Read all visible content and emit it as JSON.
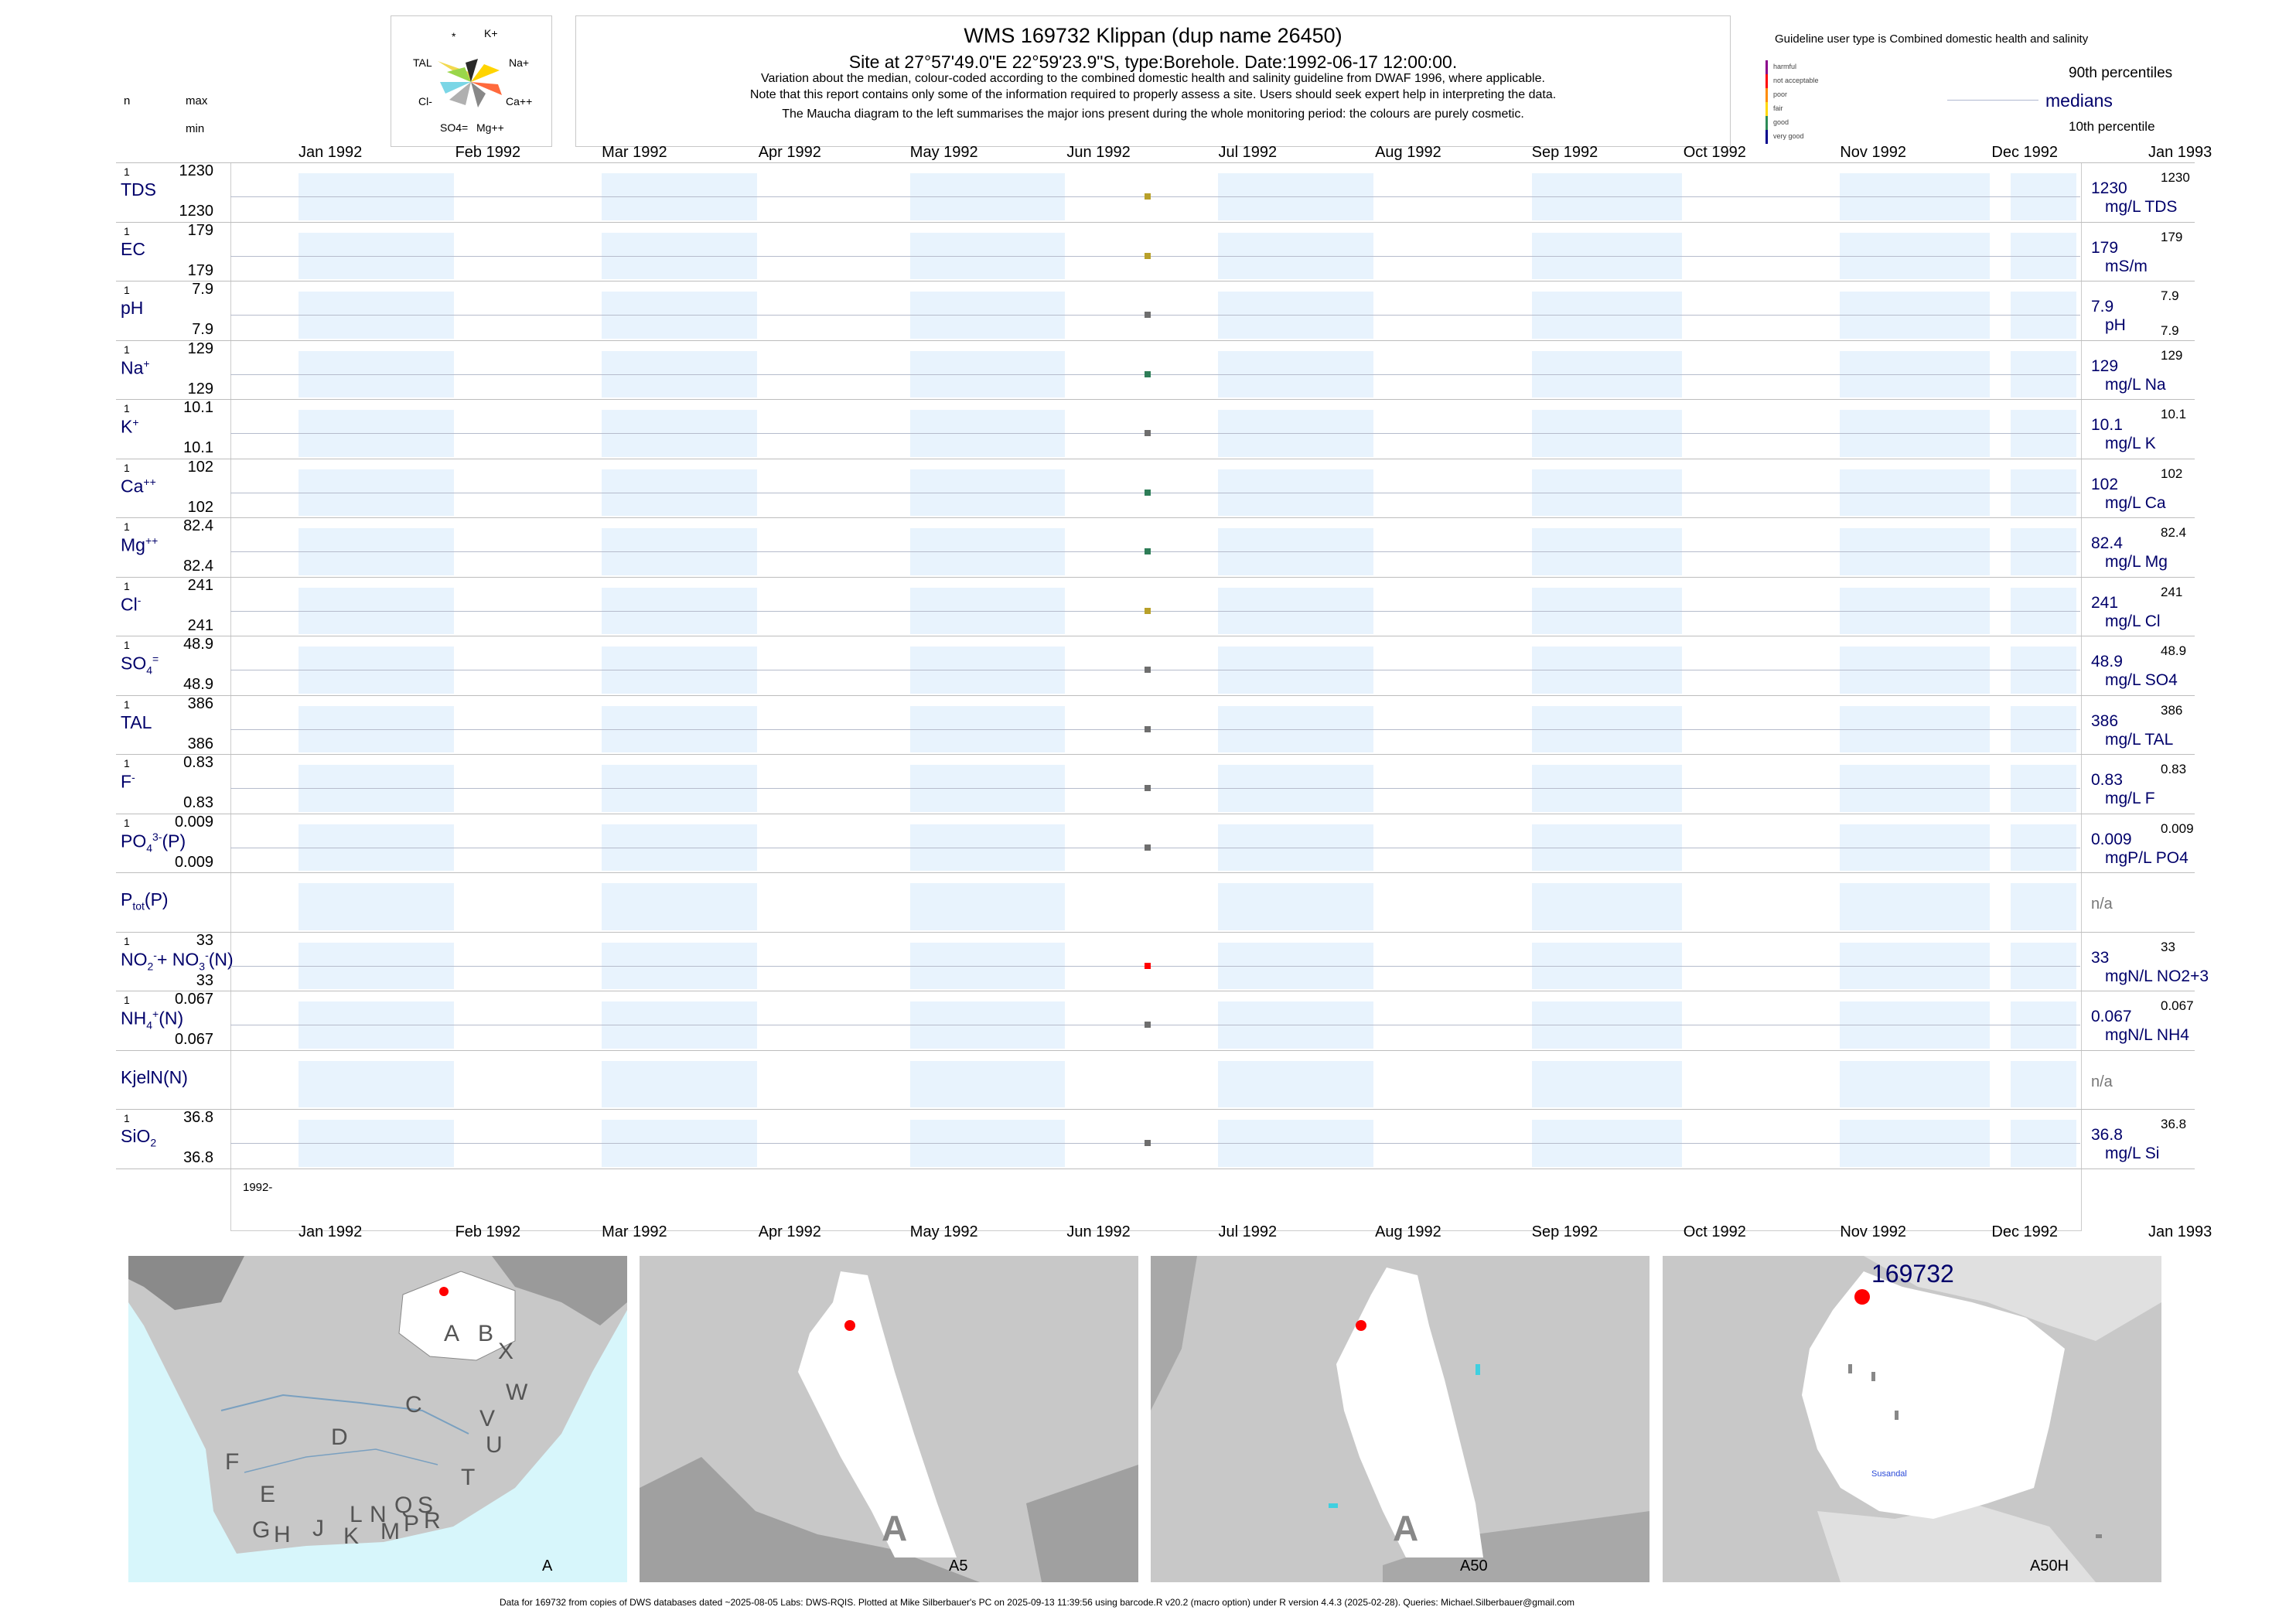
{
  "header": {
    "title": "WMS 169732  Klippan (dup name 26450)",
    "subtitle": "Site at 27°57'49.0\"E 22°59'23.9\"S, type:Borehole. Date:1992-06-17 12:00:00.",
    "note1": "Variation about the median,  colour-coded according to the combined domestic health and salinity guideline from DWAF 1996, where applicable.",
    "note2": "Note that this report contains only some of the information required to properly assess a site. Users should seek expert help in interpreting the data.",
    "note3": "The Maucha diagram to the left summarises the major ions present during the whole monitoring period: the colours are purely cosmetic."
  },
  "column_headers": {
    "n": "n",
    "max": "max",
    "min": "min"
  },
  "maucha": {
    "labels": {
      "star": "*",
      "k": "K+",
      "tal": "TAL",
      "na": "Na+",
      "cl": "Cl-",
      "ca": "Ca++",
      "so4": "SO4=",
      "mg": "Mg++"
    }
  },
  "guideline": {
    "title": "Guideline user type is Combined domestic health and salinity",
    "classes": [
      {
        "label": "harmful",
        "color": "#8b008b"
      },
      {
        "label": "not acceptable",
        "color": "#ff0000"
      },
      {
        "label": "poor",
        "color": "#ff8c00"
      },
      {
        "label": "fair",
        "color": "#ffd700"
      },
      {
        "label": "good",
        "color": "#2e8b57"
      },
      {
        "label": "very good",
        "color": "#00008b"
      }
    ],
    "pct90": "90th percentiles",
    "medians": "medians",
    "pct10": "10th percentile"
  },
  "chart_data": {
    "type": "scatter",
    "x_axis": {
      "ticks": [
        "Jan 1992",
        "Feb 1992",
        "Mar 1992",
        "Apr 1992",
        "May 1992",
        "Jun 1992",
        "Jul 1992",
        "Aug 1992",
        "Sep 1992",
        "Oct 1992",
        "Nov 1992",
        "Dec 1992",
        "Jan 1993"
      ],
      "range": [
        "1992-01-01",
        "1993-01-01"
      ],
      "year_label": "1992-"
    },
    "sample_date": "1992-06-17",
    "series": [
      {
        "name": "TDS",
        "n": "1",
        "max": "1230",
        "min": "1230",
        "median": "1230",
        "unit": "mg/L TDS",
        "p90": "1230",
        "p10": "",
        "value": 1230,
        "color": "#b8a02a"
      },
      {
        "name": "EC",
        "n": "1",
        "max": "179",
        "min": "179",
        "median": "179",
        "unit": "mS/m",
        "p90": "179",
        "p10": "",
        "value": 179,
        "color": "#b8a02a"
      },
      {
        "name": "pH",
        "n": "1",
        "max": "7.9",
        "min": "7.9",
        "median": "7.9",
        "unit": "pH",
        "p90": "7.9",
        "p10": "7.9",
        "value": 7.9,
        "color": "#6e6e6e"
      },
      {
        "name": "Na+",
        "n": "1",
        "max": "129",
        "min": "129",
        "median": "129",
        "unit": "mg/L Na",
        "p90": "129",
        "p10": "",
        "value": 129,
        "color": "#2e7d57"
      },
      {
        "name": "K+",
        "n": "1",
        "max": "10.1",
        "min": "10.1",
        "median": "10.1",
        "unit": "mg/L K",
        "p90": "10.1",
        "p10": "",
        "value": 10.1,
        "color": "#6e6e6e"
      },
      {
        "name": "Ca++",
        "n": "1",
        "max": "102",
        "min": "102",
        "median": "102",
        "unit": "mg/L Ca",
        "p90": "102",
        "p10": "",
        "value": 102,
        "color": "#2e7d57"
      },
      {
        "name": "Mg++",
        "n": "1",
        "max": "82.4",
        "min": "82.4",
        "median": "82.4",
        "unit": "mg/L Mg",
        "p90": "82.4",
        "p10": "",
        "value": 82.4,
        "color": "#2e7d57"
      },
      {
        "name": "Cl-",
        "n": "1",
        "max": "241",
        "min": "241",
        "median": "241",
        "unit": "mg/L Cl",
        "p90": "241",
        "p10": "",
        "value": 241,
        "color": "#b8a02a"
      },
      {
        "name": "SO4=",
        "n": "1",
        "max": "48.9",
        "min": "48.9",
        "median": "48.9",
        "unit": "mg/L SO4",
        "p90": "48.9",
        "p10": "",
        "value": 48.9,
        "color": "#6e6e6e"
      },
      {
        "name": "TAL",
        "n": "1",
        "max": "386",
        "min": "386",
        "median": "386",
        "unit": "mg/L TAL",
        "p90": "386",
        "p10": "",
        "value": 386,
        "color": "#6e6e6e"
      },
      {
        "name": "F-",
        "n": "1",
        "max": "0.83",
        "min": "0.83",
        "median": "0.83",
        "unit": "mg/L F",
        "p90": "0.83",
        "p10": "",
        "value": 0.83,
        "color": "#6e6e6e"
      },
      {
        "name": "PO4(3-)(P)",
        "n": "1",
        "max": "0.009",
        "min": "0.009",
        "median": "0.009",
        "unit": "mgP/L PO4",
        "p90": "0.009",
        "p10": "",
        "value": 0.009,
        "color": "#6e6e6e"
      },
      {
        "name": "Ptot(P)",
        "n": "",
        "max": "",
        "min": "",
        "median": "n/a",
        "unit": "",
        "p90": "",
        "p10": "",
        "value": null,
        "color": "#6e6e6e"
      },
      {
        "name": "NO2- + NO3-(N)",
        "n": "1",
        "max": "33",
        "min": "33",
        "median": "33",
        "unit": "mgN/L NO2+3",
        "p90": "33",
        "p10": "",
        "value": 33,
        "color": "#ff0000"
      },
      {
        "name": "NH4+(N)",
        "n": "1",
        "max": "0.067",
        "min": "0.067",
        "median": "0.067",
        "unit": "mgN/L NH4",
        "p90": "0.067",
        "p10": "",
        "value": 0.067,
        "color": "#6e6e6e"
      },
      {
        "name": "KjelN(N)",
        "n": "",
        "max": "",
        "min": "",
        "median": "n/a",
        "unit": "",
        "p90": "",
        "p10": "",
        "value": null,
        "color": "#6e6e6e"
      },
      {
        "name": "SiO2",
        "n": "1",
        "max": "36.8",
        "min": "36.8",
        "median": "36.8",
        "unit": "mg/L Si",
        "p90": "36.8",
        "p10": "",
        "value": 36.8,
        "color": "#6e6e6e"
      }
    ]
  },
  "maps": [
    {
      "caption": "A",
      "letters": [
        "A",
        "B",
        "X",
        "C",
        "W",
        "D",
        "V",
        "U",
        "F",
        "T",
        "E",
        "L",
        "N",
        "Q",
        "S",
        "G",
        "H",
        "J",
        "K",
        "M",
        "P",
        "R"
      ]
    },
    {
      "caption": "A5",
      "big_letter": "A"
    },
    {
      "caption": "A50",
      "big_letter": "A"
    },
    {
      "caption": "A50H",
      "site_label": "169732",
      "place": "Susandal"
    }
  ],
  "footer": "Data for 169732 from copies of DWS databases dated ~2025-08-05 Labs: DWS-RQIS. Plotted at Mike Silberbauer's PC on 2025-09-13 11:39:56 using barcode.R v20.2 (macro option) under R version 4.4.3 (2025-02-28). Queries: Michael.Silberbauer@gmail.com"
}
